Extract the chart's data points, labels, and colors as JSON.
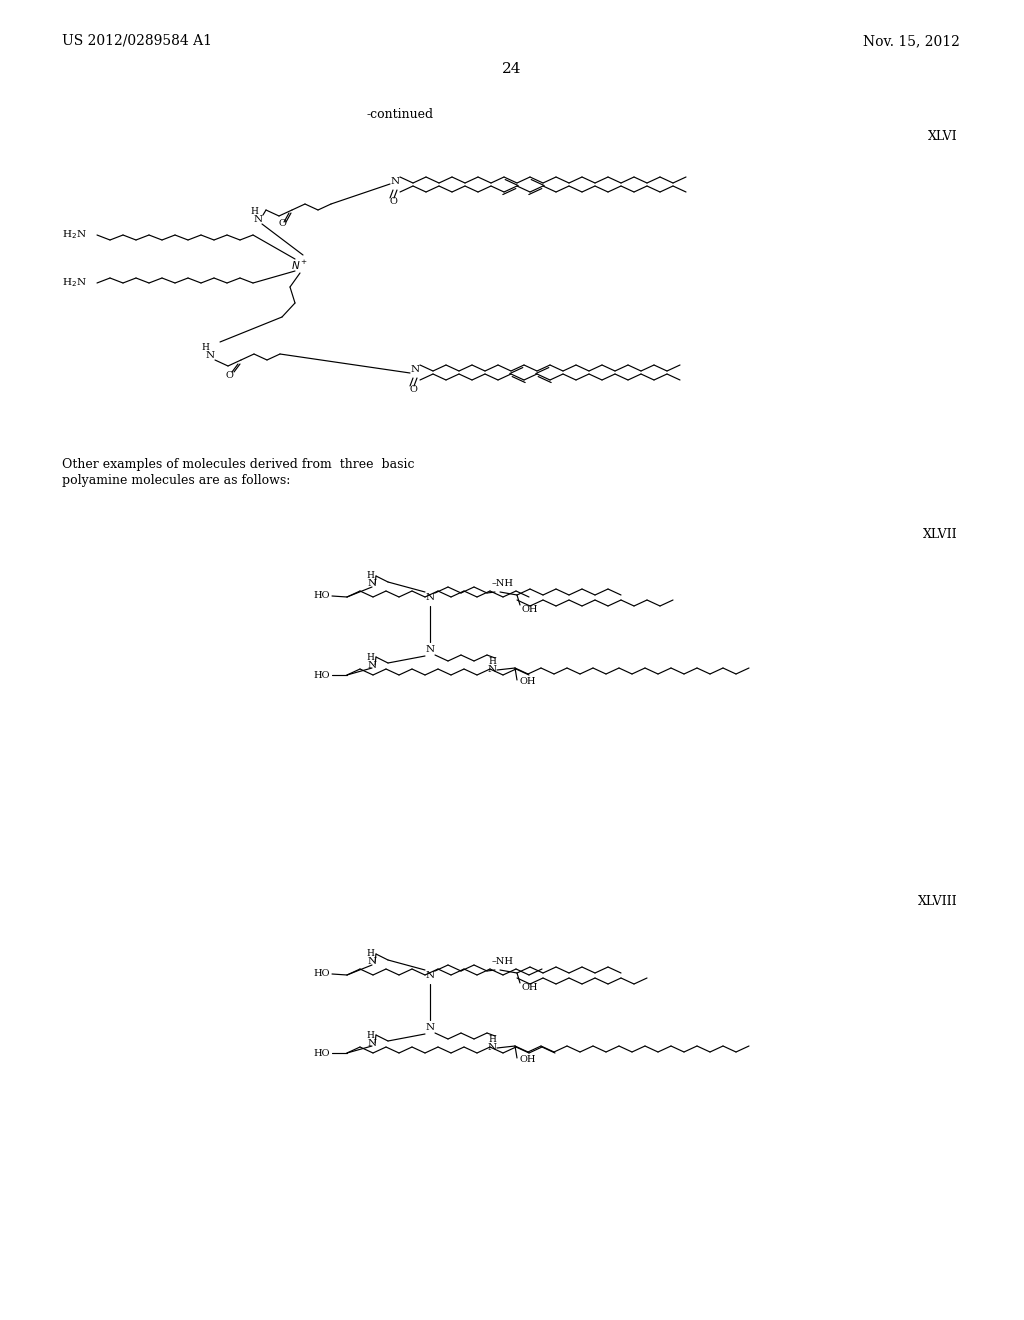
{
  "page_header_left": "US 2012/0289584 A1",
  "page_header_right": "Nov. 15, 2012",
  "page_number": "24",
  "continued_label": "-continued",
  "label_XLVI": "XLVI",
  "label_XLVII": "XLVII",
  "label_XLVIII": "XLVIII",
  "text_block_line1": "Other examples of molecules derived from  three  basic",
  "text_block_line2": "polyamine molecules are as follows:",
  "bg_color": "#ffffff",
  "line_color": "#000000",
  "font_size_header": 10,
  "font_size_label": 9,
  "font_size_atom": 7.5,
  "font_size_small": 7
}
